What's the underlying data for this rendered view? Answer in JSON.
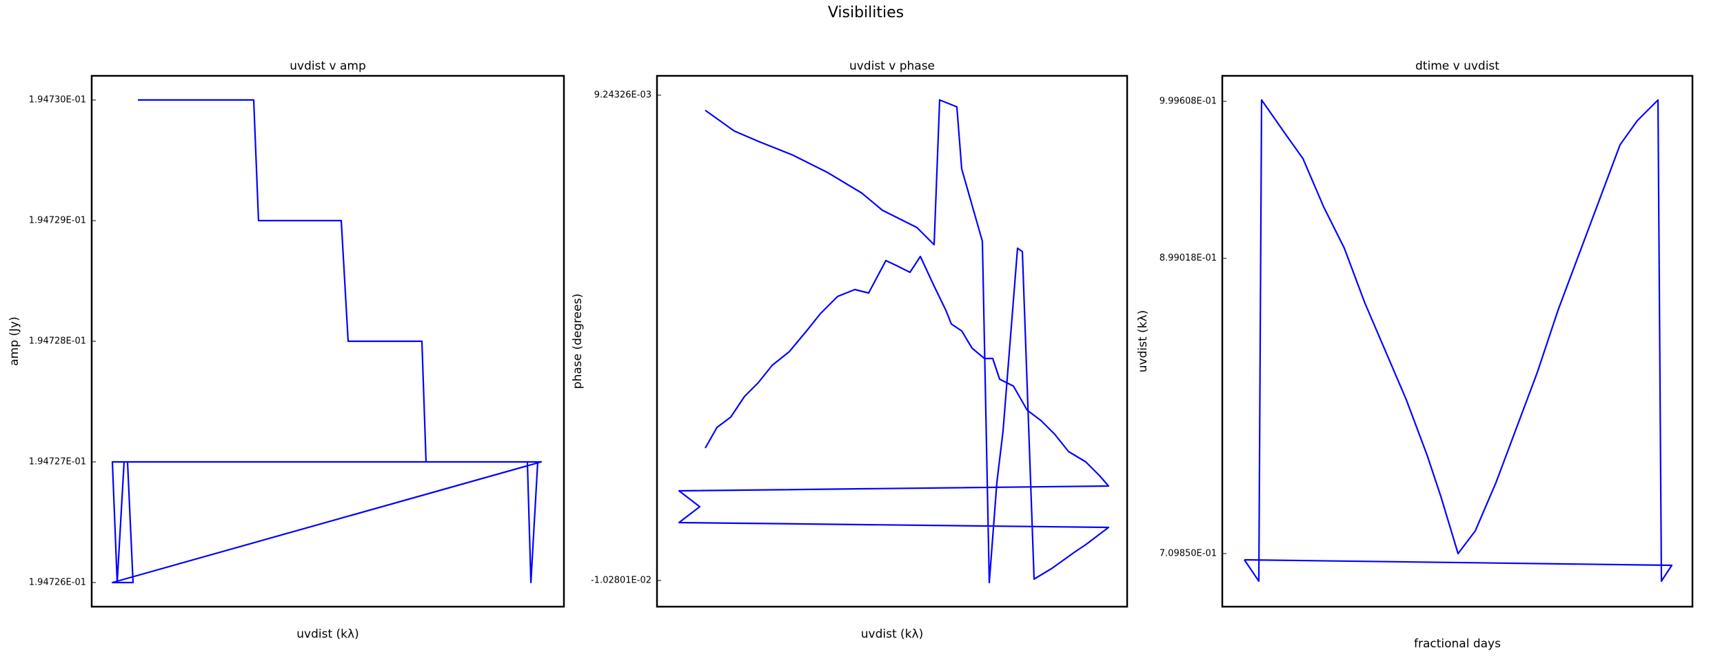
{
  "title": "Visibilities",
  "chart_data": [
    {
      "type": "line",
      "title": "uvdist v amp",
      "xlabel": "uvdist (kλ)",
      "ylabel": "amp (Jy)",
      "color": "#0000ff",
      "xlim": [
        0,
        100
      ],
      "ylim": [
        0.1947258,
        0.1947302
      ],
      "yticks": [
        {
          "value": 0.19473,
          "label": "1.94730E-01"
        },
        {
          "value": 0.194729,
          "label": "1.94729E-01"
        },
        {
          "value": 0.194728,
          "label": "1.94728E-01"
        },
        {
          "value": 0.194727,
          "label": "1.94727E-01"
        },
        {
          "value": 0.194726,
          "label": "1.94726E-01"
        }
      ],
      "x": [
        9.78,
        34.31,
        35.33,
        52.85,
        54.31,
        69.93,
        70.8,
        95.18,
        4.38,
        5.4,
        6.86,
        7.59,
        8.76,
        4.38,
        95.18,
        92.26,
        93.0,
        94.45
      ],
      "values": [
        0.19473,
        0.19473,
        0.194729,
        0.194729,
        0.194728,
        0.194728,
        0.194727,
        0.194727,
        0.194727,
        0.194726,
        0.194727,
        0.194727,
        0.194726,
        0.194726,
        0.194727,
        0.194727,
        0.194726,
        0.194727
      ]
    },
    {
      "type": "line",
      "title": "uvdist v phase",
      "xlabel": "uvdist (kλ)",
      "ylabel": "phase (degrees)",
      "color": "#0000ff",
      "xlim": [
        0,
        100
      ],
      "ylim": [
        -0.011334,
        0.01002
      ],
      "yticks": [
        {
          "value": 0.00924326,
          "label": "9.24326E-03"
        },
        {
          "value": -0.0102801,
          "label": "-1.02801E-02"
        }
      ],
      "x": [
        10.26,
        12.76,
        15.69,
        18.62,
        21.55,
        24.49,
        28.15,
        31.82,
        34.75,
        38.42,
        42.08,
        45.01,
        48.68,
        50.88,
        53.81,
        56.01,
        58.94,
        61.44,
        62.61,
        64.81,
        67.01,
        69.65,
        71.41,
        72.87,
        75.81,
        78.74,
        81.67,
        84.6,
        87.54,
        91.2,
        94.13,
        96.04,
        4.69,
        9.09,
        4.69,
        96.04,
        91.2,
        89.0,
        83.87,
        80.21,
        77.71,
        76.69,
        73.61,
        72.29,
        70.67,
        69.21,
        64.81,
        63.78,
        60.12,
        58.94,
        55.28,
        47.95,
        43.55,
        36.22,
        28.89,
        21.55,
        16.42,
        10.26
      ],
      "values": [
        -0.004955,
        -0.004123,
        -0.003708,
        -0.002876,
        -0.002321,
        -0.001628,
        -0.001073,
        -0.000241,
        0.000452,
        0.001146,
        0.001423,
        0.001284,
        0.002588,
        0.002394,
        0.002116,
        0.002754,
        0.001562,
        0.000591,
        3.6e-05,
        -0.000241,
        -0.000934,
        -0.00135,
        -0.00135,
        -0.002182,
        -0.00246,
        -0.00343,
        -0.003846,
        -0.004401,
        -0.005094,
        -0.00551,
        -0.006065,
        -0.006481,
        -0.006675,
        -0.007313,
        -0.007951,
        -0.008145,
        -0.008838,
        -0.009115,
        -0.009809,
        -0.010225,
        0.002948,
        0.003087,
        -0.004262,
        -0.006342,
        -0.010363,
        0.003364,
        0.006276,
        0.008772,
        0.00905,
        0.003225,
        0.003919,
        0.004612,
        0.005305,
        0.006137,
        0.006831,
        0.007385,
        0.007801,
        0.008633
      ]
    },
    {
      "type": "line",
      "title": "dtime v uvdist",
      "xlabel": "fractional days",
      "ylabel": "uvdist (kλ)",
      "color": "#0000ff",
      "xlim": [
        0,
        100
      ],
      "ylim": [
        0.67583,
        1.01595
      ],
      "yticks": [
        {
          "value": 0.999608,
          "label": "9.99608E-01"
        },
        {
          "value": 0.899018,
          "label": "8.99018E-01"
        },
        {
          "value": 0.70985,
          "label": "7.09850E-01"
        }
      ],
      "x": [
        4.69,
        7.77,
        8.36,
        13.49,
        17.16,
        21.55,
        25.95,
        30.35,
        34.75,
        39.15,
        43.55,
        46.48,
        50.15,
        53.81,
        58.21,
        62.61,
        67.01,
        71.41,
        75.81,
        80.21,
        84.6,
        88.27,
        92.67,
        93.4,
        95.6,
        4.69
      ],
      "values": [
        0.70587,
        0.69218,
        1.00049,
        0.9784,
        0.96295,
        0.93203,
        0.90553,
        0.87019,
        0.83927,
        0.80835,
        0.77301,
        0.74651,
        0.70985,
        0.72442,
        0.75534,
        0.79068,
        0.82602,
        0.86577,
        0.90111,
        0.93645,
        0.97178,
        0.98724,
        1.00049,
        0.69218,
        0.70234,
        0.70587
      ]
    }
  ]
}
